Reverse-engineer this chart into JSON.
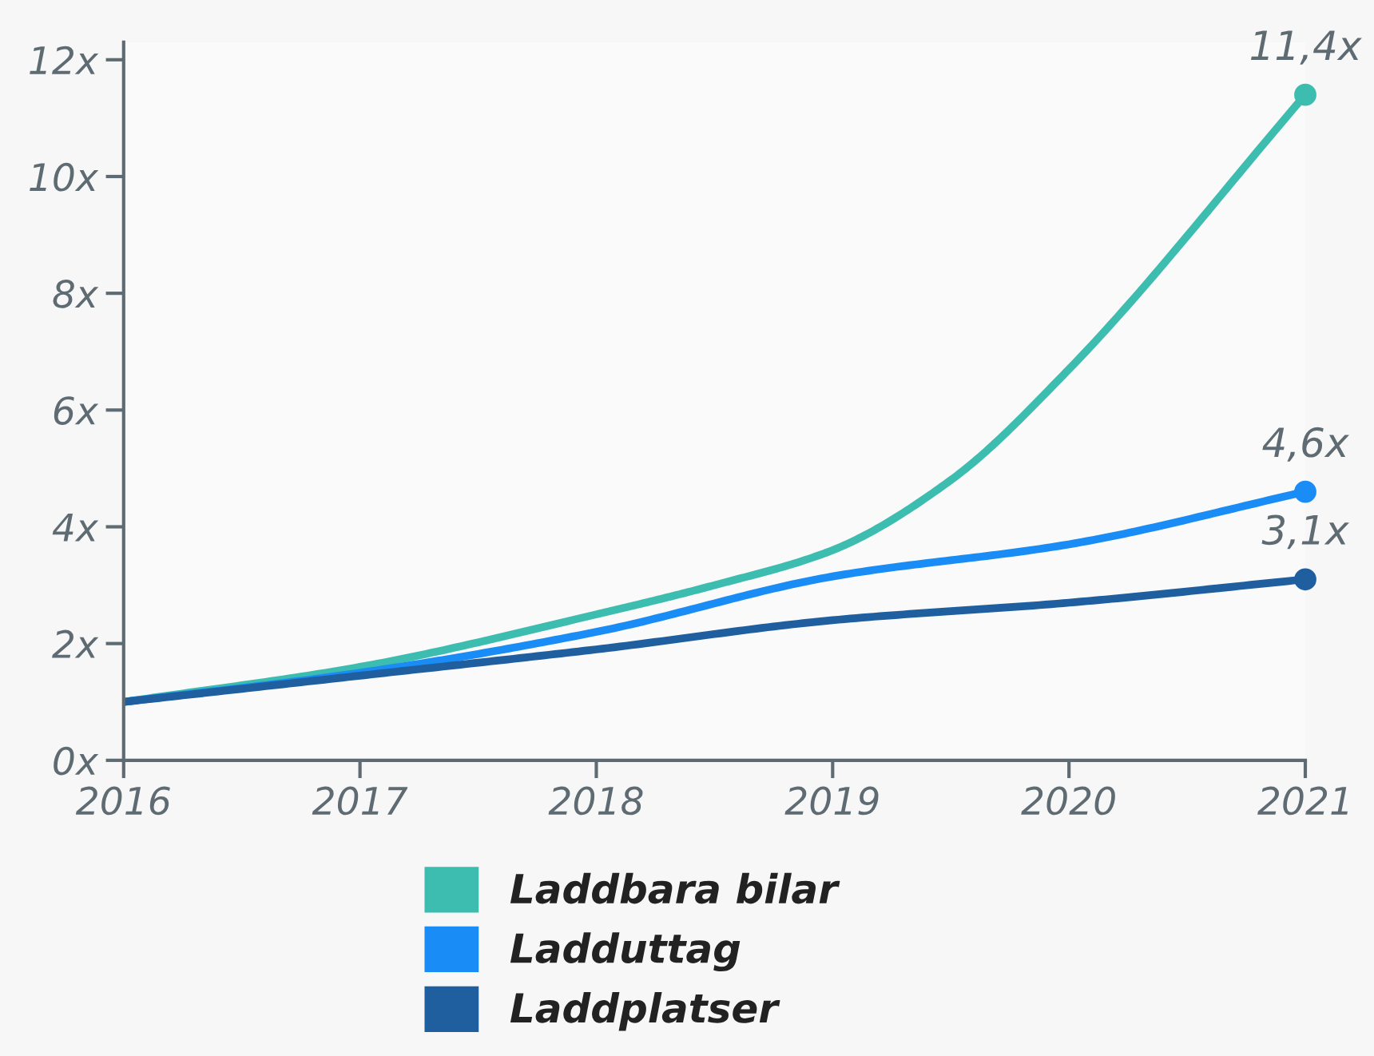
{
  "chart_data": {
    "type": "line",
    "xlim": [
      2016,
      2021
    ],
    "ylim": [
      0,
      12.3
    ],
    "xticks": [
      2016,
      2017,
      2018,
      2019,
      2020,
      2021
    ],
    "yticks": [
      {
        "value": 0,
        "label": "0x"
      },
      {
        "value": 2,
        "label": "2x"
      },
      {
        "value": 4,
        "label": "4x"
      },
      {
        "value": 6,
        "label": "6x"
      },
      {
        "value": 8,
        "label": "8x"
      },
      {
        "value": 10,
        "label": "10x"
      },
      {
        "value": 12,
        "label": "12x"
      }
    ],
    "grid": false,
    "legend": "bottom",
    "series": [
      {
        "name": "Laddbara bilar",
        "color": "#3dbdaf",
        "x": [
          2016,
          2017,
          2018,
          2018.5,
          2019,
          2019.5,
          2020,
          2021
        ],
        "values": [
          1,
          1.6,
          2.5,
          3.0,
          3.6,
          4.8,
          6.7,
          11.4
        ],
        "value_labels": [
          null,
          null,
          null,
          null,
          null,
          null,
          null,
          "11,4x"
        ]
      },
      {
        "name": "Ladduttag",
        "color": "#1a8cf5",
        "x": [
          2016,
          2017,
          2018,
          2019,
          2020,
          2021
        ],
        "values": [
          1,
          1.5,
          2.2,
          3.15,
          3.7,
          4.6
        ],
        "value_labels": [
          null,
          null,
          null,
          null,
          null,
          "4,6x"
        ]
      },
      {
        "name": "Laddplatser",
        "color": "#1f5f9f",
        "x": [
          2016,
          2017,
          2018,
          2019,
          2020,
          2021
        ],
        "values": [
          1,
          1.45,
          1.9,
          2.4,
          2.7,
          3.1
        ],
        "value_labels": [
          null,
          null,
          null,
          null,
          null,
          "3,1x"
        ]
      }
    ]
  }
}
